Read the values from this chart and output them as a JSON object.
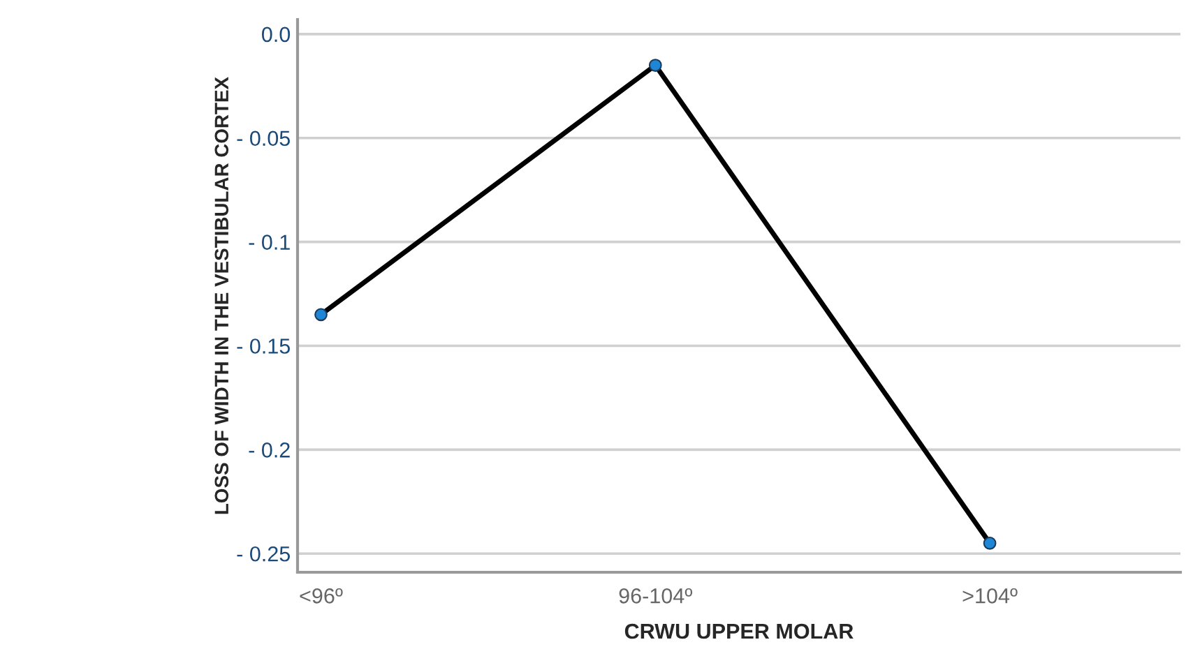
{
  "chart_data": {
    "type": "line",
    "xlabel": "CRWU UPPER MOLAR",
    "ylabel": "LOSS OF WIDTH IN THE VESTIBULAR CORTEX",
    "categories": [
      "<96º",
      "96-104º",
      ">104º"
    ],
    "series": [
      {
        "color": "#000000",
        "values": [
          -0.135,
          -0.015,
          -0.245
        ]
      }
    ],
    "marker": "circle",
    "line_style": "solid",
    "ylim": [
      -0.259,
      0.007
    ],
    "yticks": [
      {
        "value": 0.0,
        "label": "0.0"
      },
      {
        "value": -0.05,
        "label": "- 0.05"
      },
      {
        "value": -0.1,
        "label": "- 0.1"
      },
      {
        "value": -0.15,
        "label": "- 0.15"
      },
      {
        "value": -0.2,
        "label": "- 0.2"
      },
      {
        "value": -0.25,
        "label": "- 0.25"
      }
    ],
    "grid": "y",
    "legend": false
  }
}
